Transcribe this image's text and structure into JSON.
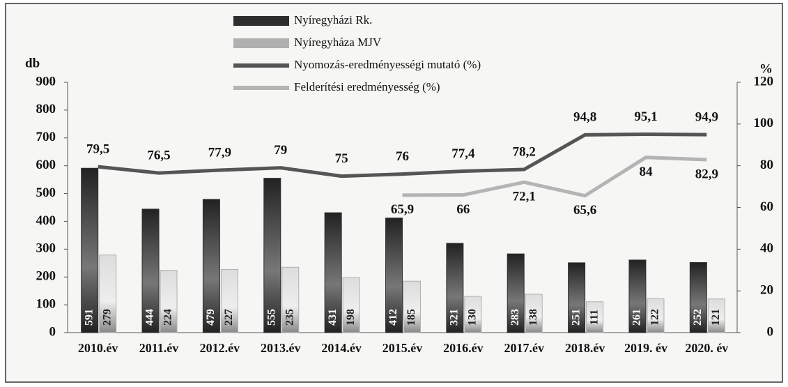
{
  "chart_data": {
    "type": "bar-line",
    "ylabel": "db",
    "y2label": "%",
    "categories": [
      "2010.év",
      "2011.év",
      "2012.év",
      "2013.év",
      "2014.év",
      "2015.év",
      "2016.év",
      "2017.év",
      "2018.év",
      "2019. év",
      "2020. év"
    ],
    "series": [
      {
        "name": "Nyíregyházi Rk.",
        "type": "bar",
        "color": "#2e2e2e",
        "values": [
          591,
          444,
          479,
          555,
          431,
          412,
          321,
          283,
          251,
          261,
          252
        ]
      },
      {
        "name": "Nyíregyháza MJV",
        "type": "bar",
        "color": "#b0b0b0",
        "values": [
          279,
          224,
          227,
          235,
          198,
          185,
          130,
          138,
          111,
          122,
          121
        ]
      },
      {
        "name": "Nyomozás-eredményességi mutató (%)",
        "type": "line",
        "axis": "y2",
        "color": "#555555",
        "values": [
          79.5,
          76.5,
          77.9,
          79,
          75,
          76,
          77.4,
          78.2,
          94.8,
          95.1,
          94.9
        ],
        "value_labels": [
          "79,5",
          "76,5",
          "77,9",
          "79",
          "75",
          "76",
          "77,4",
          "78,2",
          "94,8",
          "95,1",
          "94,9"
        ]
      },
      {
        "name": "Felderítési eredményesség (%)",
        "type": "line",
        "axis": "y2",
        "color": "#b4b4b4",
        "values": [
          null,
          null,
          null,
          null,
          null,
          65.9,
          66,
          72.1,
          65.6,
          84,
          82.9
        ],
        "value_labels": [
          null,
          null,
          null,
          null,
          null,
          "65,9",
          "66",
          "72,1",
          "65,6",
          "84",
          "82,9"
        ]
      }
    ],
    "ylim": [
      0,
      900
    ],
    "yticks": [
      0,
      100,
      200,
      300,
      400,
      500,
      600,
      700,
      800,
      900
    ],
    "y2lim": [
      0,
      120
    ],
    "y2ticks": [
      0,
      20,
      40,
      60,
      80,
      100,
      120
    ],
    "legend": "top"
  }
}
